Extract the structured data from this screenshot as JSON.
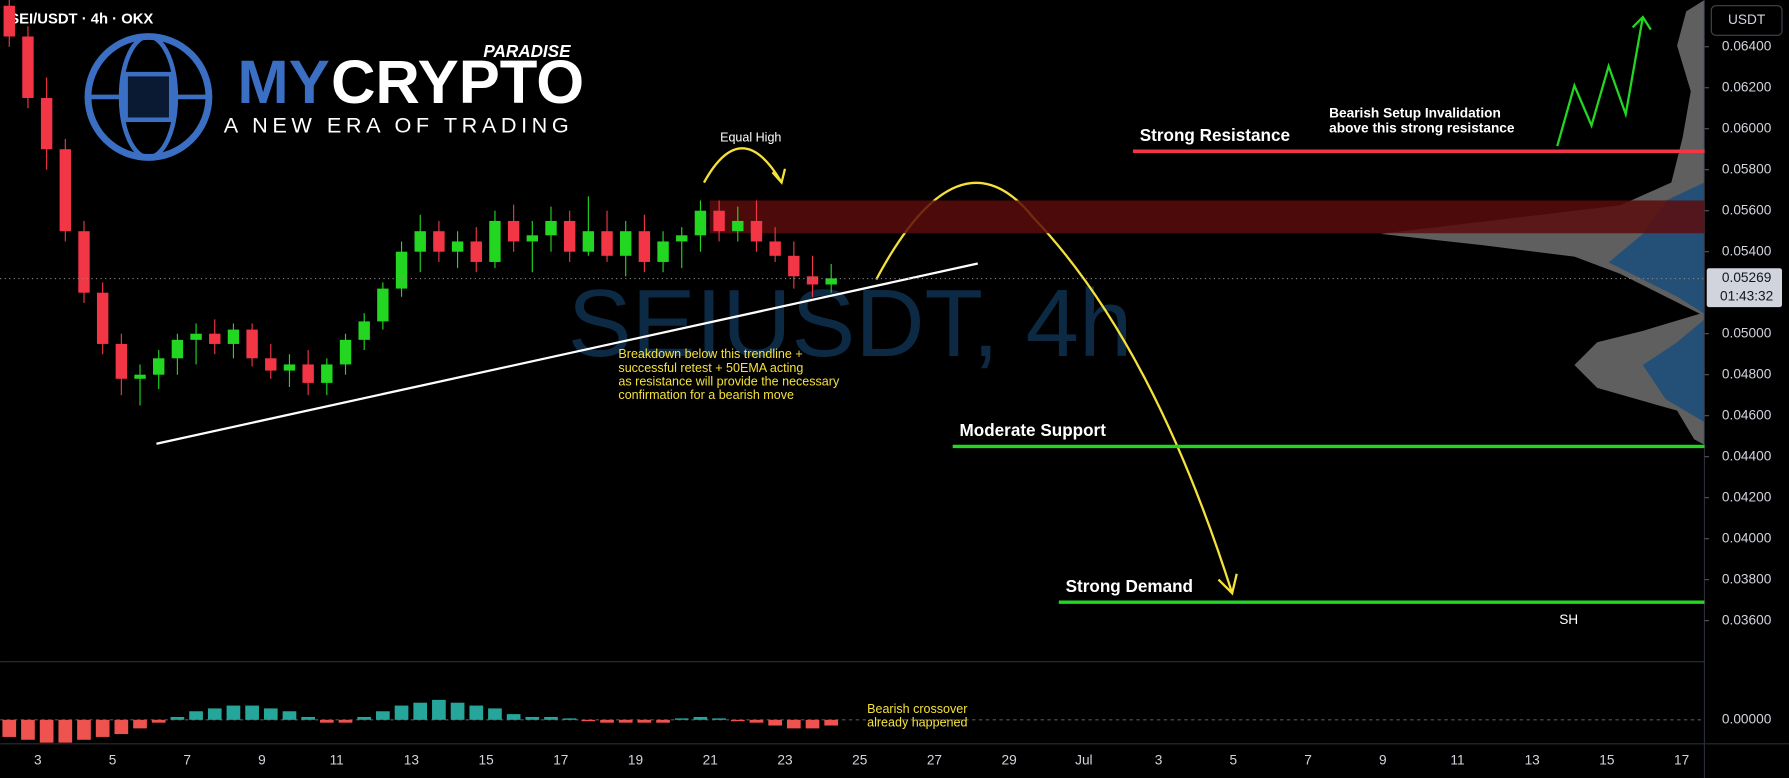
{
  "header": {
    "symbol_line": "SEI/USDT · 4h · OKX",
    "currency": "USDT"
  },
  "logo": {
    "brand_1": "MY",
    "brand_2": "CRYPTO",
    "tag": "PARADISE",
    "tagline": "A NEW ERA OF TRADING"
  },
  "watermark": "SEIUSDT, 4h",
  "chart_data": [
    {
      "type": "candlestick",
      "ylim": [
        0.034,
        0.06628
      ],
      "yticks": [
        {
          "value": 0.064,
          "label": "0.06400"
        },
        {
          "value": 0.062,
          "label": "0.06200"
        },
        {
          "value": 0.06,
          "label": "0.06000"
        },
        {
          "value": 0.058,
          "label": "0.05800"
        },
        {
          "value": 0.056,
          "label": "0.05600"
        },
        {
          "value": 0.054,
          "label": "0.05400"
        },
        {
          "value": 0.05,
          "label": "0.05000"
        },
        {
          "value": 0.048,
          "label": "0.04800"
        },
        {
          "value": 0.046,
          "label": "0.04600"
        },
        {
          "value": 0.044,
          "label": "0.04400"
        },
        {
          "value": 0.042,
          "label": "0.04200"
        },
        {
          "value": 0.04,
          "label": "0.04000"
        },
        {
          "value": 0.038,
          "label": "0.03800"
        },
        {
          "value": 0.036,
          "label": "0.03600"
        }
      ],
      "x_labels": [
        "3",
        "5",
        "7",
        "9",
        "11",
        "13",
        "15",
        "17",
        "19",
        "21",
        "23",
        "25",
        "27",
        "29",
        "Jul",
        "3",
        "5",
        "7",
        "9",
        "11",
        "13",
        "15",
        "17"
      ],
      "open": [
        0.066,
        0.0645,
        0.0615,
        0.059,
        0.055,
        0.052,
        0.0495,
        0.0478,
        0.048,
        0.0488,
        0.0497,
        0.05,
        0.0495,
        0.0502,
        0.0488,
        0.0482,
        0.0485,
        0.0476,
        0.0485,
        0.0497,
        0.0506,
        0.0522,
        0.054,
        0.055,
        0.054,
        0.0545,
        0.0535,
        0.0555,
        0.0545,
        0.0548,
        0.0555,
        0.054,
        0.055,
        0.0538,
        0.055,
        0.0535,
        0.0545,
        0.0548,
        0.056,
        0.055,
        0.0555,
        0.0545,
        0.0538,
        0.0528,
        0.0524
      ],
      "high": [
        0.0665,
        0.065,
        0.0625,
        0.0595,
        0.0555,
        0.0525,
        0.05,
        0.0485,
        0.0492,
        0.05,
        0.0505,
        0.0507,
        0.0505,
        0.0505,
        0.0495,
        0.049,
        0.0492,
        0.0488,
        0.05,
        0.051,
        0.0525,
        0.0545,
        0.0558,
        0.0555,
        0.055,
        0.0552,
        0.056,
        0.0563,
        0.0555,
        0.0562,
        0.056,
        0.0567,
        0.056,
        0.0555,
        0.0558,
        0.055,
        0.0552,
        0.0565,
        0.0565,
        0.0562,
        0.0565,
        0.0552,
        0.0545,
        0.0538,
        0.0534
      ],
      "low": [
        0.064,
        0.061,
        0.058,
        0.0545,
        0.0515,
        0.049,
        0.047,
        0.0465,
        0.0473,
        0.048,
        0.0485,
        0.049,
        0.0488,
        0.0484,
        0.0478,
        0.0474,
        0.047,
        0.047,
        0.048,
        0.0492,
        0.0502,
        0.0518,
        0.053,
        0.0535,
        0.0532,
        0.053,
        0.0532,
        0.054,
        0.053,
        0.054,
        0.0535,
        0.0538,
        0.0535,
        0.0528,
        0.053,
        0.053,
        0.0532,
        0.054,
        0.0545,
        0.0545,
        0.054,
        0.0535,
        0.0522,
        0.0518,
        0.052
      ],
      "close": [
        0.0645,
        0.0615,
        0.059,
        0.055,
        0.052,
        0.0495,
        0.0478,
        0.048,
        0.0488,
        0.0497,
        0.05,
        0.0495,
        0.0502,
        0.0488,
        0.0482,
        0.0485,
        0.0476,
        0.0485,
        0.0497,
        0.0506,
        0.0522,
        0.054,
        0.055,
        0.054,
        0.0545,
        0.0535,
        0.0555,
        0.0545,
        0.0548,
        0.0555,
        0.054,
        0.055,
        0.0538,
        0.055,
        0.0535,
        0.0545,
        0.0548,
        0.056,
        0.055,
        0.0555,
        0.0545,
        0.0538,
        0.0528,
        0.0524,
        0.0527
      ],
      "up_color": "#22d622",
      "down_color": "#f23645",
      "last_price": 0.05269,
      "countdown": "01:43:32",
      "zone": {
        "range": [
          0.0549,
          0.0565
        ],
        "color": "#5a0c0c"
      },
      "levels": [
        {
          "name": "Strong Resistance",
          "value": 0.0589,
          "color": "#f23645"
        },
        {
          "name": "Moderate Support",
          "value": 0.0445,
          "color": "#22d622"
        },
        {
          "name": "Strong Demand",
          "value": 0.0369,
          "color": "#22d622"
        }
      ],
      "annotations": {
        "equal_high": "Equal High",
        "invalidation": [
          "Bearish Setup Invalidation",
          "above  this strong resistance"
        ],
        "breakdown": [
          "Breakdown below this trendline +",
          "successful retest + 50EMA acting",
          "as resistance will provide the necessary",
          "confirmation for a bearish move"
        ],
        "sh": "SH"
      }
    },
    {
      "type": "bar",
      "ylim": [
        -0.00084,
        0.00196
      ],
      "yticks": [
        {
          "value": 0,
          "label": "0.00000"
        }
      ],
      "values": [
        -0.0006,
        -0.0007,
        -0.0008,
        -0.0008,
        -0.0007,
        -0.0006,
        -0.0005,
        -0.0003,
        -0.0001,
        0.0001,
        0.0003,
        0.0004,
        0.0005,
        0.0005,
        0.0004,
        0.0003,
        0.0001,
        -0.0001,
        -0.0001,
        0.0001,
        0.0003,
        0.0005,
        0.0006,
        0.0007,
        0.0006,
        0.0005,
        0.0004,
        0.0002,
        0.0001,
        0.0001,
        5e-05,
        -5e-05,
        -0.0001,
        -0.0001,
        -0.0001,
        -0.0001,
        5e-05,
        0.0001,
        5e-05,
        -5e-05,
        -0.0001,
        -0.0002,
        -0.0003,
        -0.0003,
        -0.0002
      ],
      "pos_color": "#26a69a",
      "neg_color": "#ef5350",
      "annotation": [
        "Bearish crossover",
        "already happened"
      ]
    }
  ]
}
